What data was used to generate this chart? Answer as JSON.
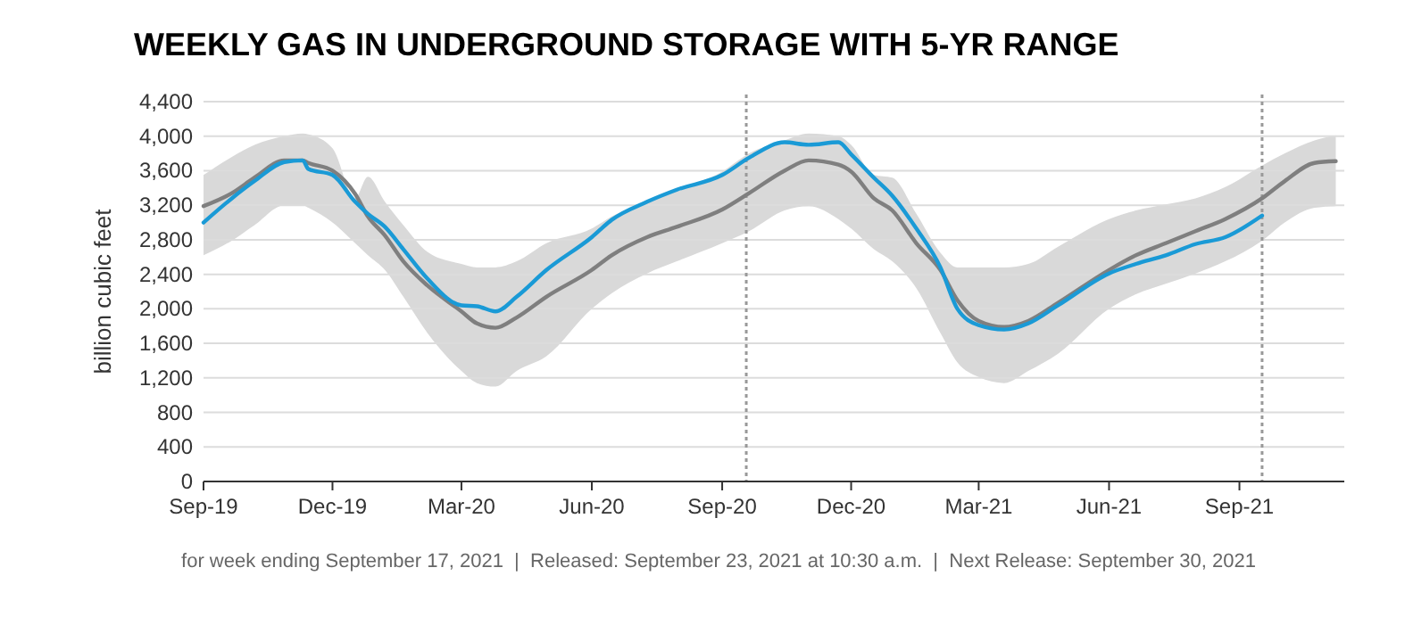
{
  "chart_data": {
    "type": "line",
    "title": "WEEKLY GAS IN UNDERGROUND STORAGE WITH 5-YR RANGE",
    "ylabel": "billion cubic feet",
    "x": [
      "2019-09-01",
      "2019-09-21",
      "2019-10-07",
      "2019-10-28",
      "2019-11-10",
      "2019-11-14",
      "2019-12-01",
      "2019-12-17",
      "2019-12-26",
      "2020-01-07",
      "2020-01-20",
      "2020-02-06",
      "2020-03-01",
      "2020-03-12",
      "2020-03-25",
      "2020-04-09",
      "2020-04-30",
      "2020-06-01",
      "2020-06-15",
      "2020-07-10",
      "2020-07-31",
      "2020-09-01",
      "2020-09-20",
      "2020-10-15",
      "2020-11-01",
      "2020-11-22",
      "2020-12-01",
      "2020-12-17",
      "2020-12-30",
      "2021-01-16",
      "2021-02-02",
      "2021-02-14",
      "2021-03-01",
      "2021-03-19",
      "2021-04-05",
      "2021-04-26",
      "2021-06-01",
      "2021-06-20",
      "2021-07-11",
      "2021-08-01",
      "2021-08-22",
      "2021-09-17",
      "2021-10-03",
      "2021-10-24",
      "2021-11-08"
    ],
    "series": [
      {
        "color": "#7f7f7f",
        "values": [
          3190,
          3340,
          3520,
          3720,
          3720,
          3690,
          3600,
          3330,
          3070,
          2850,
          2550,
          2270,
          1970,
          1830,
          1780,
          1900,
          2140,
          2450,
          2620,
          2830,
          2950,
          3150,
          3340,
          3600,
          3720,
          3670,
          3590,
          3280,
          3140,
          2760,
          2450,
          2100,
          1860,
          1790,
          1860,
          2070,
          2450,
          2620,
          2760,
          2900,
          3040,
          3280,
          3480,
          3690,
          3710
        ],
        "lower": [
          2620,
          2790,
          2970,
          3200,
          3200,
          3170,
          3000,
          2760,
          2620,
          2450,
          2140,
          1720,
          1280,
          1140,
          1100,
          1280,
          1450,
          2000,
          2180,
          2410,
          2550,
          2760,
          2900,
          3140,
          3190,
          3040,
          2930,
          2690,
          2550,
          2240,
          1720,
          1380,
          1210,
          1140,
          1280,
          1480,
          2000,
          2170,
          2290,
          2410,
          2550,
          2790,
          3000,
          3170,
          3190
        ],
        "upper": [
          3550,
          3760,
          3900,
          4000,
          4030,
          4020,
          3860,
          3280,
          3530,
          3240,
          2970,
          2660,
          2520,
          2480,
          2480,
          2550,
          2760,
          2930,
          3070,
          3240,
          3380,
          3590,
          3800,
          3950,
          4030,
          4000,
          3900,
          3550,
          3520,
          3100,
          2650,
          2480,
          2480,
          2480,
          2520,
          2720,
          3040,
          3140,
          3210,
          3280,
          3410,
          3660,
          3800,
          3950,
          4010
        ]
      },
      {
        "color": "#1a9ad6",
        "values": [
          3000,
          3280,
          3480,
          3700,
          3720,
          3620,
          3550,
          3240,
          3100,
          2950,
          2690,
          2350,
          2040,
          2030,
          1970,
          2140,
          2450,
          2830,
          3030,
          3240,
          3380,
          3550,
          3750,
          3930,
          3900,
          3930,
          3790,
          3520,
          3310,
          2930,
          2480,
          2000,
          1810,
          1760,
          1830,
          2040,
          2410,
          2520,
          2620,
          2750,
          2830,
          3080,
          null,
          null,
          null
        ]
      }
    ],
    "xlim": [
      "2019-09-01",
      "2021-11-14"
    ],
    "xticks": [
      {
        "value": "2019-09-01",
        "label": "Sep-19"
      },
      {
        "value": "2019-12-01",
        "label": "Dec-19"
      },
      {
        "value": "2020-03-01",
        "label": "Mar-20"
      },
      {
        "value": "2020-06-01",
        "label": "Jun-20"
      },
      {
        "value": "2020-09-01",
        "label": "Sep-20"
      },
      {
        "value": "2020-12-01",
        "label": "Dec-20"
      },
      {
        "value": "2021-03-01",
        "label": "Mar-21"
      },
      {
        "value": "2021-06-01",
        "label": "Jun-21"
      },
      {
        "value": "2021-09-01",
        "label": "Sep-21"
      }
    ],
    "ylim": [
      0,
      4400
    ],
    "yticks": [
      0,
      400,
      800,
      {
        "value": 1200,
        "label": "1,200"
      },
      {
        "value": 1600,
        "label": "1,600"
      },
      {
        "value": 2000,
        "label": "2,000"
      },
      {
        "value": 2400,
        "label": "2,400"
      },
      {
        "value": 2800,
        "label": "2,800"
      },
      {
        "value": 3200,
        "label": "3,200"
      },
      {
        "value": 3600,
        "label": "3,600"
      },
      {
        "value": 4000,
        "label": "4,000"
      },
      {
        "value": 4400,
        "label": "4,400"
      }
    ],
    "grid": "y",
    "marker": "none",
    "line_style": "solid",
    "ref_lines": [
      {
        "axis": "x",
        "value": "2020-09-18",
        "color": "#999999",
        "line_style": "dotted"
      },
      {
        "axis": "x",
        "value": "2021-09-17",
        "color": "#999999",
        "line_style": "dotted"
      }
    ],
    "annotations": [
      "for week ending September 17, 2021  |  Released: September 23, 2021 at 10:30 a.m.  |  Next Release: September 30, 2021"
    ]
  }
}
